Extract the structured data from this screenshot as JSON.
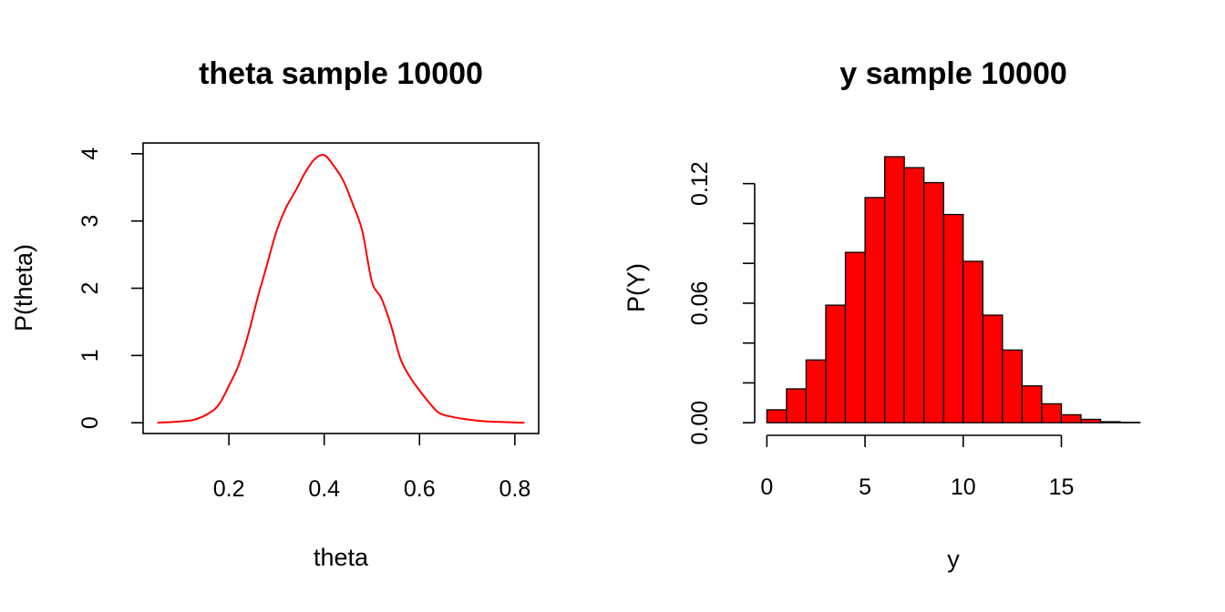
{
  "chart_data": [
    {
      "type": "line",
      "title": "theta sample 10000",
      "xlabel": "theta",
      "ylabel": "P(theta)",
      "xlim": [
        0.02,
        0.85
      ],
      "ylim": [
        -0.16,
        4.16
      ],
      "x_ticks": [
        0.2,
        0.4,
        0.6,
        0.8
      ],
      "x_tick_labels": [
        "0.2",
        "0.4",
        "0.6",
        "0.8"
      ],
      "y_ticks": [
        0,
        1,
        2,
        3,
        4
      ],
      "y_tick_labels": [
        "0",
        "1",
        "2",
        "3",
        "4"
      ],
      "line_color": "#ff0000",
      "box": true,
      "x": [
        0.05,
        0.1,
        0.13,
        0.16,
        0.18,
        0.2,
        0.22,
        0.24,
        0.26,
        0.28,
        0.3,
        0.32,
        0.34,
        0.36,
        0.38,
        0.4,
        0.42,
        0.44,
        0.46,
        0.48,
        0.5,
        0.52,
        0.54,
        0.56,
        0.58,
        0.6,
        0.62,
        0.64,
        0.66,
        0.7,
        0.74,
        0.78,
        0.82
      ],
      "y": [
        0.0,
        0.02,
        0.05,
        0.15,
        0.28,
        0.55,
        0.85,
        1.3,
        1.85,
        2.35,
        2.85,
        3.2,
        3.45,
        3.72,
        3.92,
        3.98,
        3.82,
        3.6,
        3.25,
        2.85,
        2.1,
        1.85,
        1.45,
        0.95,
        0.68,
        0.48,
        0.3,
        0.15,
        0.1,
        0.05,
        0.02,
        0.01,
        0.0
      ]
    },
    {
      "type": "bar",
      "title": "y sample 10000",
      "xlabel": "y",
      "ylabel": "P(Y)",
      "xlim": [
        -0.76,
        19.76
      ],
      "ylim": [
        -0.0054,
        0.1404
      ],
      "x_ticks": [
        0,
        5,
        10,
        15
      ],
      "x_tick_labels": [
        "0",
        "5",
        "10",
        "15"
      ],
      "y_ticks": [
        0,
        0.02,
        0.04,
        0.06,
        0.08,
        0.1,
        0.12
      ],
      "y_tick_labels": [
        "0.00",
        "",
        "",
        "0.06",
        "",
        "",
        "0.12"
      ],
      "bar_color": "#ff0000",
      "bar_edge": "#000000",
      "bin_edges": [
        0,
        1,
        2,
        3,
        4,
        5,
        6,
        7,
        8,
        9,
        10,
        11,
        12,
        13,
        14,
        15,
        16,
        17,
        18,
        19
      ],
      "values": [
        0.0065,
        0.017,
        0.0315,
        0.059,
        0.0855,
        0.113,
        0.1335,
        0.128,
        0.1205,
        0.1045,
        0.081,
        0.054,
        0.0365,
        0.0185,
        0.0095,
        0.004,
        0.0017,
        0.0005,
        0.0002
      ]
    }
  ]
}
